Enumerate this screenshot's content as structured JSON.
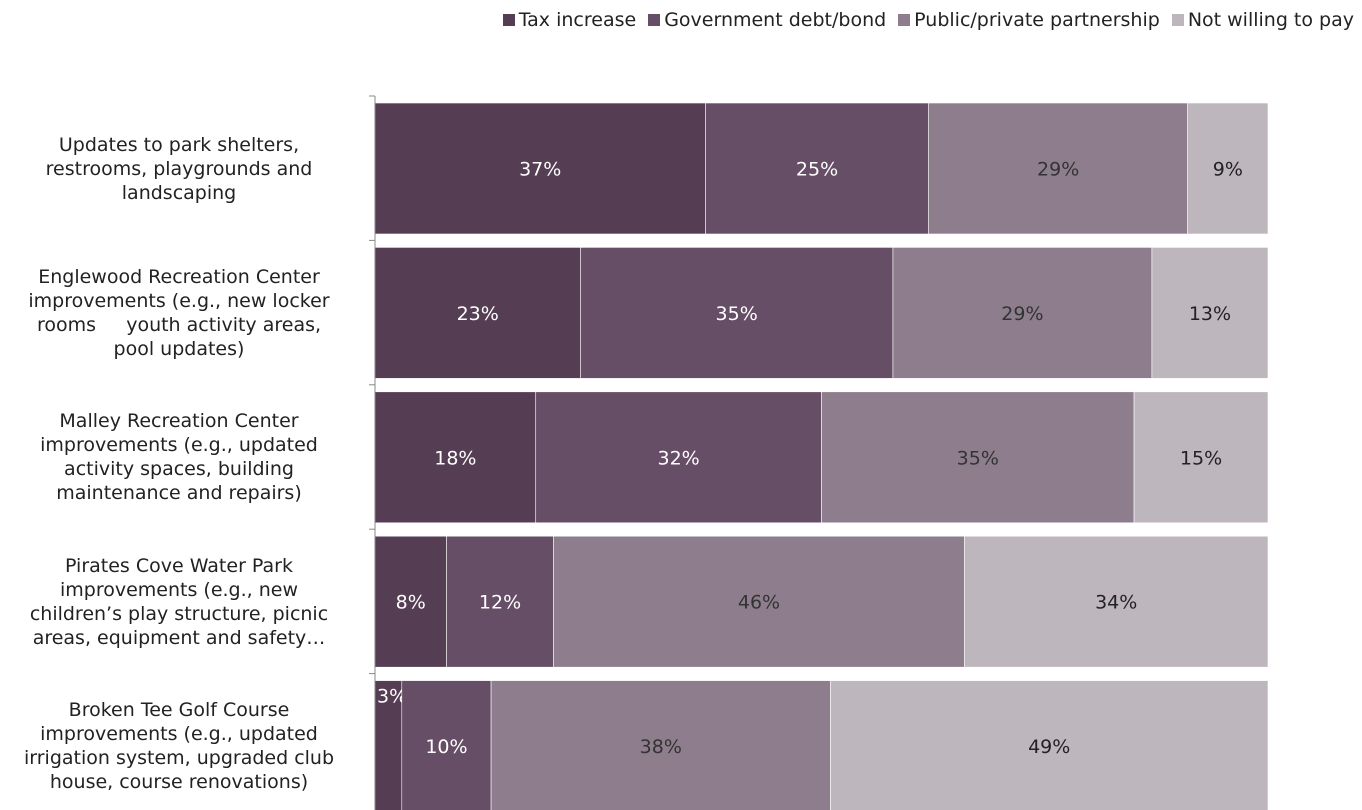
{
  "chart_data": {
    "type": "bar",
    "orientation": "horizontal",
    "stacked": true,
    "percent": true,
    "categories": [
      [
        "Updates to park shelters,",
        "restrooms, playgrounds and",
        "landscaping"
      ],
      [
        "Englewood Recreation Center",
        "improvements (e.g., new locker",
        "rooms     youth activity areas,",
        "pool updates)"
      ],
      [
        "Malley Recreation Center",
        "improvements (e.g., updated",
        "activity spaces, building",
        "maintenance and repairs)"
      ],
      [
        "Pirates Cove Water Park",
        "improvements (e.g., new",
        "children’s play structure, picnic",
        "areas, equipment and safety…"
      ],
      [
        "Broken Tee Golf Course",
        "improvements (e.g., updated",
        "irrigation system, upgraded club",
        "house, course renovations)"
      ]
    ],
    "series": [
      {
        "name": "Tax increase",
        "color": "#553e54",
        "values": [
          37,
          23,
          18,
          8,
          3
        ],
        "labels": [
          "37%",
          "23%",
          "18%",
          "8%",
          "3%"
        ]
      },
      {
        "name": "Government debt/bond",
        "color": "#674e67",
        "values": [
          25,
          35,
          32,
          12,
          10
        ],
        "labels": [
          "25%",
          "35%",
          "32%",
          "12%",
          "10%"
        ]
      },
      {
        "name": "Public/private partnership",
        "color": "#8e7e8d",
        "values": [
          29,
          29,
          35,
          46,
          38
        ],
        "labels": [
          "29%",
          "29%",
          "35%",
          "46%",
          "38%"
        ]
      },
      {
        "name": "Not willing to pay",
        "color": "#bdb6bd",
        "values": [
          9,
          13,
          15,
          34,
          49
        ],
        "labels": [
          "9%",
          "13%",
          "15%",
          "34%",
          "49%"
        ]
      }
    ],
    "label_colors": [
      "#ffffff",
      "#ffffff",
      "#333333",
      "#222222"
    ],
    "legend_position": "top-right",
    "grid": false
  }
}
